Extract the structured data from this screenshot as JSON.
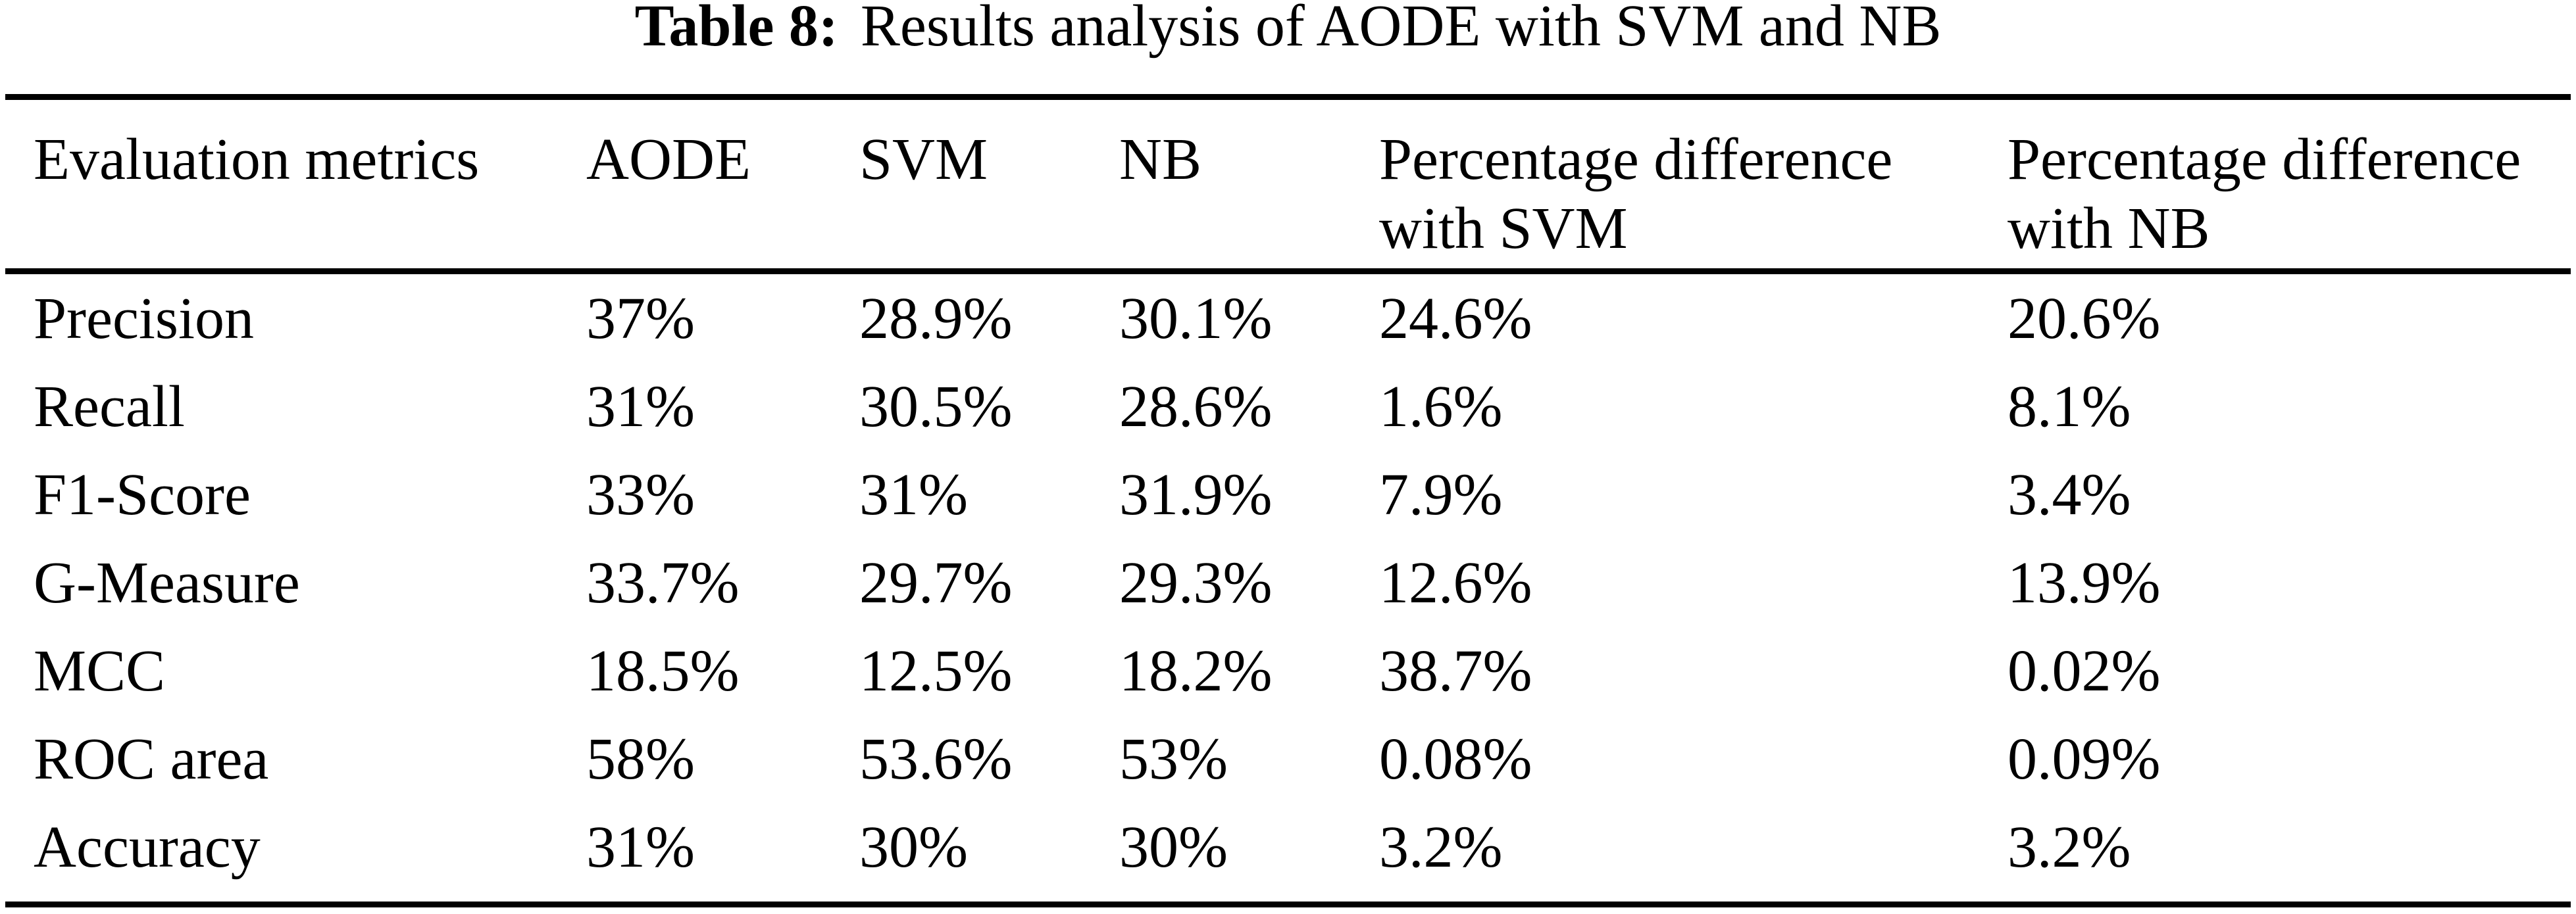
{
  "caption": {
    "label": "Table 8:",
    "text": "Results analysis of AODE with SVM and NB"
  },
  "table": {
    "headers": [
      "Evaluation metrics",
      "AODE",
      "SVM",
      "NB",
      "Percentage difference with SVM",
      "Percentage difference with NB"
    ],
    "rows": [
      [
        "Precision",
        "37%",
        "28.9%",
        "30.1%",
        "24.6%",
        "20.6%"
      ],
      [
        "Recall",
        "31%",
        "30.5%",
        "28.6%",
        "1.6%",
        "8.1%"
      ],
      [
        "F1-Score",
        "33%",
        "31%",
        "31.9%",
        "7.9%",
        "3.4%"
      ],
      [
        "G-Measure",
        "33.7%",
        "29.7%",
        "29.3%",
        "12.6%",
        "13.9%"
      ],
      [
        "MCC",
        "18.5%",
        "12.5%",
        "18.2%",
        "38.7%",
        "0.02%"
      ],
      [
        "ROC area",
        "58%",
        "53.6%",
        "53%",
        "0.08%",
        "0.09%"
      ],
      [
        "Accuracy",
        "31%",
        "30%",
        "30%",
        "3.2%",
        "3.2%"
      ]
    ],
    "colors": {
      "text": "#000000",
      "rule": "#000000",
      "background": "#ffffff"
    }
  }
}
